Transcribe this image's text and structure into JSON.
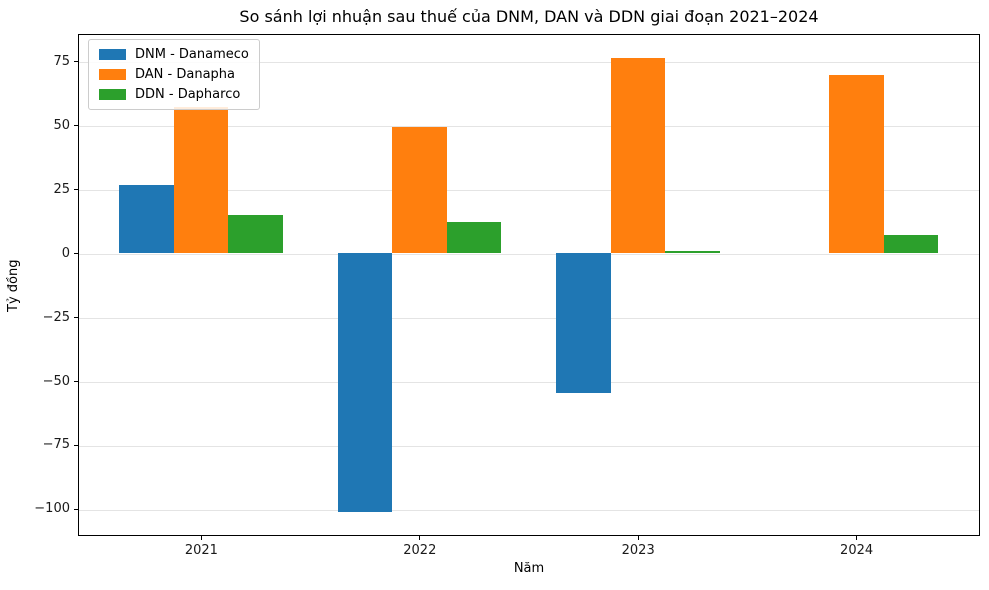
{
  "title": "So sánh lợi nhuận sau thuế của DNM, DAN và DDN giai đoạn 2021–2024",
  "chart_data": {
    "type": "bar",
    "title": "So sánh lợi nhuận sau thuế của DNM, DAN và DDN giai đoạn 2021–2024",
    "xlabel": "Năm",
    "ylabel": "Tỷ đồng",
    "categories": [
      "2021",
      "2022",
      "2023",
      "2024"
    ],
    "series": [
      {
        "name": "DNM - Danameco",
        "ticker": "DNM",
        "color": "#1f77b4",
        "values": [
          26.8,
          -100.9,
          -54.6,
          0
        ]
      },
      {
        "name": "DAN - Danapha",
        "ticker": "DAN",
        "color": "#ff7f0e",
        "values": [
          57.2,
          49.3,
          76.6,
          69.6
        ]
      },
      {
        "name": "DDN - Dapharco",
        "ticker": "DDN",
        "color": "#2ca02c",
        "values": [
          14.9,
          12.2,
          1.0,
          7.3
        ]
      }
    ],
    "yticks": [
      75,
      50,
      25,
      0,
      -25,
      -50,
      -75,
      -100
    ],
    "ytick_labels": [
      "75",
      "50",
      "25",
      "0",
      "−25",
      "−50",
      "−75",
      "−100"
    ],
    "ylim": [
      -110.4,
      85.9
    ],
    "xlim": [
      -0.565,
      3.565
    ],
    "bar_width": 0.25,
    "grid": true,
    "grid_axis": "y",
    "legend_position": "upper left"
  }
}
